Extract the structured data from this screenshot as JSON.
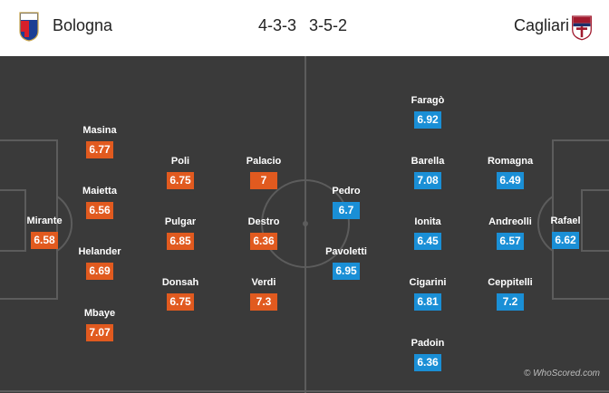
{
  "header": {
    "home_team": "Bologna",
    "away_team": "Cagliari",
    "home_formation": "4-3-3",
    "away_formation": "3-5-2"
  },
  "colors": {
    "home_rating": "#e15a1f",
    "away_rating": "#1a8fd6",
    "pitch": "#3a3a3a"
  },
  "icons": {
    "home_crest": "bologna-crest-icon",
    "away_crest": "cagliari-crest-icon"
  },
  "home_players": [
    {
      "name": "Mirante",
      "rating": "6.58"
    },
    {
      "name": "Masina",
      "rating": "6.77"
    },
    {
      "name": "Maietta",
      "rating": "6.56"
    },
    {
      "name": "Helander",
      "rating": "6.69"
    },
    {
      "name": "Mbaye",
      "rating": "7.07"
    },
    {
      "name": "Poli",
      "rating": "6.75"
    },
    {
      "name": "Pulgar",
      "rating": "6.85"
    },
    {
      "name": "Donsah",
      "rating": "6.75"
    },
    {
      "name": "Palacio",
      "rating": "7"
    },
    {
      "name": "Destro",
      "rating": "6.36"
    },
    {
      "name": "Verdi",
      "rating": "7.3"
    }
  ],
  "away_players": [
    {
      "name": "Rafael",
      "rating": "6.62"
    },
    {
      "name": "Romagna",
      "rating": "6.49"
    },
    {
      "name": "Andreolli",
      "rating": "6.57"
    },
    {
      "name": "Ceppitelli",
      "rating": "7.2"
    },
    {
      "name": "Faragò",
      "rating": "6.92"
    },
    {
      "name": "Barella",
      "rating": "7.08"
    },
    {
      "name": "Ionita",
      "rating": "6.45"
    },
    {
      "name": "Cigarini",
      "rating": "6.81"
    },
    {
      "name": "Padoin",
      "rating": "6.36"
    },
    {
      "name": "Pedro",
      "rating": "6.7"
    },
    {
      "name": "Pavoletti",
      "rating": "6.95"
    }
  ],
  "watermark": "© WhoScored.com"
}
